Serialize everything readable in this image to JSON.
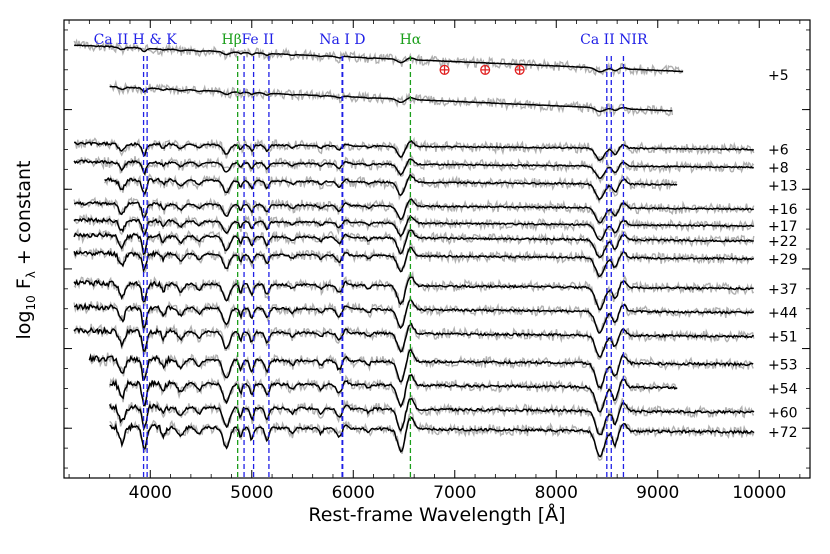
{
  "chart_data": {
    "type": "line",
    "title": "",
    "xlabel": "Rest-frame Wavelength [Å]",
    "ylabel_prefix": "log",
    "ylabel_sub": "10",
    "ylabel_mid": " F",
    "ylabel_sub2": "λ",
    "ylabel_suffix": " + constant",
    "xlim": [
      3150,
      10500
    ],
    "ylim": [
      0,
      460
    ],
    "y_units": "arbitrary (log flux + offset)",
    "x_ticks": [
      4000,
      5000,
      6000,
      7000,
      8000,
      9000,
      10000
    ],
    "x_tick_labels": [
      "4000",
      "5000",
      "6000",
      "7000",
      "8000",
      "9000",
      "10000"
    ],
    "y_major_ticks": [
      50,
      130,
      210,
      290,
      370
    ],
    "grid": false,
    "colors": {
      "spectrum": "#000000",
      "raw_spectrum": "#b0b0b0",
      "ca_lines": "#1f1fe6",
      "balmer_lines": "#1a9e1a",
      "telluric": "#e02020"
    },
    "line_markers": [
      {
        "id": "ca-hk",
        "wavelengths": [
          3934,
          3969
        ],
        "color": "#1f1fe6",
        "label": "Ca II H & K"
      },
      {
        "id": "h-beta",
        "wavelengths": [
          4861
        ],
        "color": "#1a9e1a",
        "label": "Hβ"
      },
      {
        "id": "fe-ii",
        "wavelengths": [
          4924,
          5018,
          5169
        ],
        "color": "#1f1fe6",
        "label": "Fe II"
      },
      {
        "id": "na-i-d",
        "wavelengths": [
          5890,
          5896
        ],
        "color": "#1f1fe6",
        "label": "Na I D"
      },
      {
        "id": "h-alpha",
        "wavelengths": [
          6563
        ],
        "color": "#1a9e1a",
        "label": "Hα"
      },
      {
        "id": "ca-nir",
        "wavelengths": [
          8498,
          8542,
          8662
        ],
        "color": "#1f1fe6",
        "label": "Ca II NIR"
      }
    ],
    "telluric_markers": [
      {
        "wavelength": 6900,
        "label": "⊕"
      },
      {
        "wavelength": 7300,
        "label": "⊕"
      },
      {
        "wavelength": 7640,
        "label": "⊕"
      }
    ],
    "series": [
      {
        "name": "+5",
        "offset": 405,
        "x_start": 3250,
        "x_end": 9250,
        "phase": 0,
        "label": "+5"
      },
      {
        "name": "+5b",
        "offset": 365,
        "x_start": 3600,
        "x_end": 9150,
        "phase": 0,
        "label": ""
      },
      {
        "name": "+6",
        "offset": 330,
        "x_start": 3250,
        "x_end": 9950,
        "phase": 1,
        "label": "+6"
      },
      {
        "name": "+8",
        "offset": 312,
        "x_start": 3250,
        "x_end": 9950,
        "phase": 1,
        "label": "+8"
      },
      {
        "name": "+13",
        "offset": 294,
        "x_start": 3550,
        "x_end": 9200,
        "phase": 2,
        "label": "+13"
      },
      {
        "name": "+16",
        "offset": 270,
        "x_start": 3250,
        "x_end": 9950,
        "phase": 2,
        "label": "+16"
      },
      {
        "name": "+17",
        "offset": 253,
        "x_start": 3250,
        "x_end": 9950,
        "phase": 2,
        "label": "+17"
      },
      {
        "name": "+22",
        "offset": 238,
        "x_start": 3250,
        "x_end": 9950,
        "phase": 3,
        "label": "+22"
      },
      {
        "name": "+29",
        "offset": 220,
        "x_start": 3250,
        "x_end": 9950,
        "phase": 3,
        "label": "+29"
      },
      {
        "name": "+37",
        "offset": 190,
        "x_start": 3250,
        "x_end": 9950,
        "phase": 4,
        "label": "+37"
      },
      {
        "name": "+44",
        "offset": 166,
        "x_start": 3250,
        "x_end": 9950,
        "phase": 4,
        "label": "+44"
      },
      {
        "name": "+51",
        "offset": 142,
        "x_start": 3250,
        "x_end": 9950,
        "phase": 4,
        "label": "+51"
      },
      {
        "name": "+53",
        "offset": 114,
        "x_start": 3400,
        "x_end": 9950,
        "phase": 5,
        "label": "+53"
      },
      {
        "name": "+54",
        "offset": 90,
        "x_start": 3600,
        "x_end": 9200,
        "phase": 5,
        "label": "+54"
      },
      {
        "name": "+60",
        "offset": 66,
        "x_start": 3600,
        "x_end": 9950,
        "phase": 5,
        "label": "+60"
      },
      {
        "name": "+72",
        "offset": 46,
        "x_start": 3600,
        "x_end": 9950,
        "phase": 6,
        "label": "+72"
      }
    ]
  }
}
